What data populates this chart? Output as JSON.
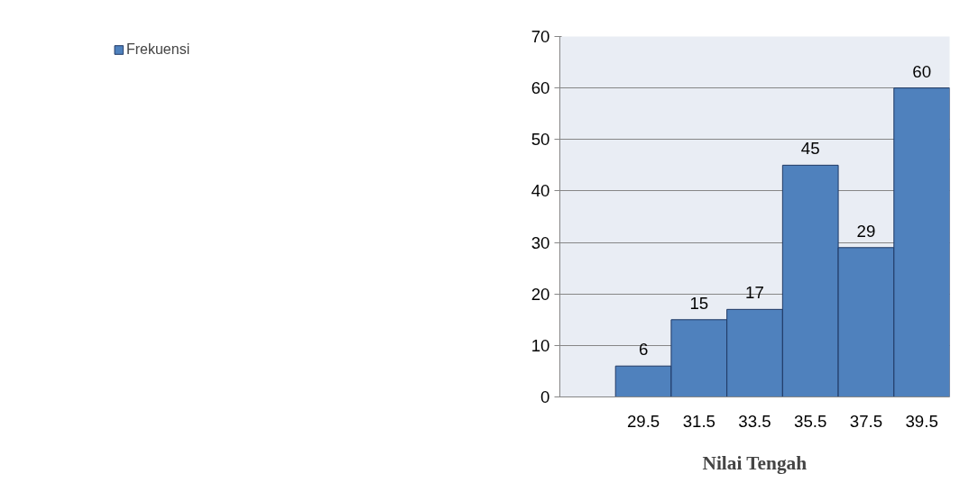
{
  "chart_data": {
    "type": "bar",
    "xlabel": "Nilai Tengah",
    "categories": [
      null,
      "29.5",
      "31.5",
      "33.5",
      "35.5",
      "37.5",
      "39.5"
    ],
    "series": [
      {
        "name": "Frekuensi",
        "color": "#4f81bd",
        "values": [
          null,
          6,
          15,
          17,
          45,
          29,
          60
        ]
      }
    ],
    "ylim": [
      0,
      70
    ],
    "yticks": [
      0,
      10,
      20,
      30,
      40,
      50,
      60,
      70
    ],
    "grid": "y",
    "legend": "left",
    "data_labels": true
  }
}
